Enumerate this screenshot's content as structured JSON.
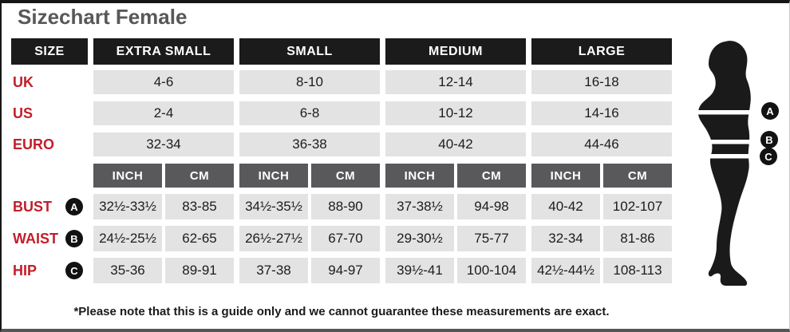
{
  "title": "Sizechart Female",
  "table": {
    "size_label": "SIZE",
    "sizes": [
      "EXTRA SMALL",
      "SMALL",
      "MEDIUM",
      "LARGE"
    ],
    "region_rows": [
      {
        "label": "UK",
        "values": [
          "4-6",
          "8-10",
          "12-14",
          "16-18"
        ]
      },
      {
        "label": "US",
        "values": [
          "2-4",
          "6-8",
          "10-12",
          "14-16"
        ]
      },
      {
        "label": "EURO",
        "values": [
          "32-34",
          "36-38",
          "40-42",
          "44-46"
        ]
      }
    ],
    "unit_headers": [
      "INCH",
      "CM"
    ],
    "measurement_rows": [
      {
        "label": "BUST",
        "marker": "A",
        "values": [
          [
            "32½-33½",
            "83-85"
          ],
          [
            "34½-35½",
            "88-90"
          ],
          [
            "37-38½",
            "94-98"
          ],
          [
            "40-42",
            "102-107"
          ]
        ]
      },
      {
        "label": "WAIST",
        "marker": "B",
        "values": [
          [
            "24½-25½",
            "62-65"
          ],
          [
            "26½-27½",
            "67-70"
          ],
          [
            "29-30½",
            "75-77"
          ],
          [
            "32-34",
            "81-86"
          ]
        ]
      },
      {
        "label": "HIP",
        "marker": "C",
        "values": [
          [
            "35-36",
            "89-91"
          ],
          [
            "37-38",
            "94-97"
          ],
          [
            "39½-41",
            "100-104"
          ],
          [
            "42½-44½",
            "108-113"
          ]
        ]
      }
    ]
  },
  "figure_markers": [
    "A",
    "B",
    "C"
  ],
  "note": "*Please note that this is a guide only and we cannot guarantee these measurements are exact.",
  "colors": {
    "black": "#1b1b1b",
    "dark_gray": "#59595b",
    "cell_gray": "#e3e3e4",
    "red": "#c31e2a",
    "title_gray": "#58585a"
  }
}
